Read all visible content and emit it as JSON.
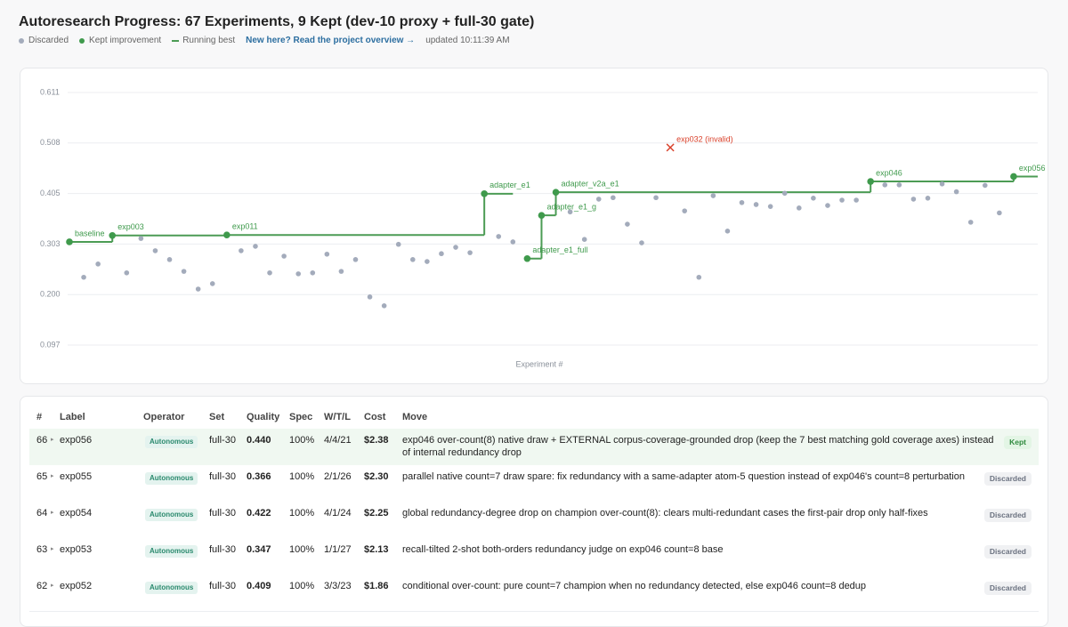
{
  "header": {
    "title": "Autoresearch Progress: 67 Experiments, 9 Kept (dev-10 proxy + full-30 gate)",
    "link": "New here? Read the project overview →",
    "updated": "updated 10:11:39 AM"
  },
  "chart_data": {
    "type": "scatter",
    "xlabel": "Experiment #",
    "xlim": [
      0,
      67
    ],
    "ylim": [
      0.097,
      0.611
    ],
    "yticks": [
      {
        "value": 0.097,
        "label": "0.097"
      },
      {
        "value": 0.1998,
        "label": "0.200"
      },
      {
        "value": 0.3026,
        "label": "0.303"
      },
      {
        "value": 0.4054,
        "label": "0.405"
      },
      {
        "value": 0.5082,
        "label": "0.508"
      },
      {
        "value": 0.611,
        "label": "0.611"
      }
    ],
    "grid": true,
    "series": [
      {
        "name": "Discarded",
        "color": "#a3abbb",
        "x": [
          1,
          2,
          4,
          5,
          6,
          7,
          8,
          9,
          10,
          12,
          13,
          14,
          15,
          16,
          17,
          18,
          19,
          20,
          21,
          22,
          23,
          24,
          25,
          26,
          27,
          28,
          30,
          31,
          35,
          36,
          37,
          38,
          39,
          40,
          41,
          43,
          44,
          45,
          46,
          47,
          48,
          49,
          50,
          51,
          52,
          53,
          54,
          55,
          57,
          58,
          59,
          60,
          61,
          62,
          63,
          64,
          65
        ],
        "values": [
          0.235,
          0.262,
          0.244,
          0.314,
          0.289,
          0.271,
          0.247,
          0.211,
          0.222,
          0.289,
          0.298,
          0.244,
          0.278,
          0.242,
          0.244,
          0.282,
          0.247,
          0.271,
          0.195,
          0.177,
          0.302,
          0.271,
          0.267,
          0.283,
          0.296,
          0.285,
          0.318,
          0.307,
          0.368,
          0.312,
          0.394,
          0.397,
          0.343,
          0.305,
          0.397,
          0.37,
          0.235,
          0.401,
          0.329,
          0.387,
          0.383,
          0.379,
          0.406,
          0.376,
          0.396,
          0.381,
          0.392,
          0.392,
          0.423,
          0.423,
          0.394,
          0.396,
          0.425,
          0.409,
          0.347,
          0.422,
          0.366
        ]
      },
      {
        "name": "Kept improvement",
        "color": "#3f9a4c",
        "x": [
          0,
          3,
          11,
          29,
          32,
          33,
          34,
          56,
          66
        ],
        "values": [
          0.307,
          0.32,
          0.321,
          0.405,
          0.273,
          0.361,
          0.408,
          0.43,
          0.44
        ],
        "labels": [
          "baseline",
          "exp003",
          "exp011",
          "adapter_e1",
          "adapter_e1_full",
          "adapter_e1_g",
          "adapter_v2a_e1",
          "exp046",
          "exp056"
        ]
      }
    ],
    "running_best": {
      "name": "Running best",
      "color": "#4c9c55"
    },
    "annotations": [
      {
        "x": 42,
        "value": 0.499,
        "label": "exp032 (invalid)",
        "color": "#d9412b"
      }
    ]
  },
  "table": {
    "columns": [
      "#",
      "Label",
      "Operator",
      "Set",
      "Quality",
      "Spec",
      "W/T/L",
      "Cost",
      "Move"
    ],
    "rows": [
      [
        "66",
        "exp056",
        "Autonomous",
        "full-30",
        "0.440",
        "100%",
        "4/4/21",
        "$2.38",
        "exp046 over-count(8) native draw + EXTERNAL corpus-coverage-grounded drop (keep the 7 best matching gold coverage axes) instead of internal redundancy drop",
        "Kept"
      ],
      [
        "65",
        "exp055",
        "Autonomous",
        "full-30",
        "0.366",
        "100%",
        "2/1/26",
        "$2.30",
        "parallel native count=7 draw spare: fix redundancy with a same-adapter atom-5 question instead of exp046's count=8 perturbation",
        "Discarded"
      ],
      [
        "64",
        "exp054",
        "Autonomous",
        "full-30",
        "0.422",
        "100%",
        "4/1/24",
        "$2.25",
        "global redundancy-degree drop on champion over-count(8): clears multi-redundant cases the first-pair drop only half-fixes",
        "Discarded"
      ],
      [
        "63",
        "exp053",
        "Autonomous",
        "full-30",
        "0.347",
        "100%",
        "1/1/27",
        "$2.13",
        "recall-tilted 2-shot both-orders redundancy judge on exp046 count=8 base",
        "Discarded"
      ],
      [
        "62",
        "exp052",
        "Autonomous",
        "full-30",
        "0.409",
        "100%",
        "3/3/23",
        "$1.86",
        "conditional over-count: pure count=7 champion when no redundancy detected, else exp046 count=8 dedup",
        "Discarded"
      ]
    ]
  }
}
